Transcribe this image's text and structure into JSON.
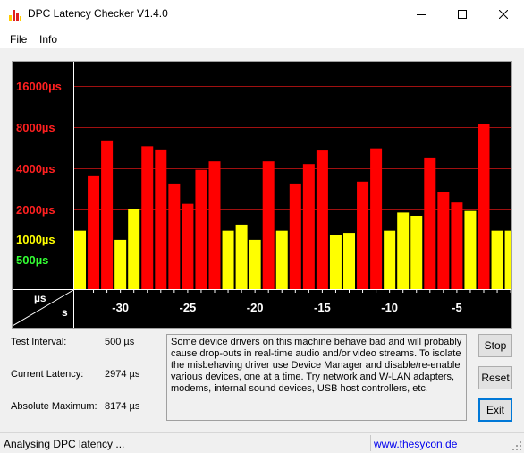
{
  "window": {
    "title": "DPC Latency Checker V1.4.0",
    "controls": [
      "minimize-icon",
      "maximize-icon",
      "close-icon"
    ]
  },
  "menu": {
    "file": "File",
    "info": "Info"
  },
  "chart_data": {
    "type": "bar",
    "yscale": "log",
    "ytick_labels": [
      {
        "text": "16000µs",
        "value": 16000,
        "color": "#ff2020"
      },
      {
        "text": "8000µs",
        "value": 8000,
        "color": "#ff2020"
      },
      {
        "text": "4000µs",
        "value": 4000,
        "color": "#ff2020"
      },
      {
        "text": "2000µs",
        "value": 2000,
        "color": "#ff2020"
      },
      {
        "text": "1000µs",
        "value": 1000,
        "color": "#ffff00"
      },
      {
        "text": "500µs",
        "value": 500,
        "color": "#33ff33"
      }
    ],
    "gridlines": [
      16000,
      8000,
      4000,
      2000
    ],
    "axis_corner": {
      "y_unit": "µs",
      "x_unit": "s"
    },
    "x": [
      -33,
      -32,
      -31,
      -30,
      -29,
      -28,
      -27,
      -26,
      -25,
      -24,
      -23,
      -22,
      -21,
      -20,
      -19,
      -18,
      -17,
      -16,
      -15,
      -14,
      -13,
      -12,
      -11,
      -10,
      -9,
      -8,
      -7,
      -6,
      -5,
      -4,
      -3,
      -2,
      -1
    ],
    "xtick_labels": [
      "-30",
      "-25",
      "-20",
      "-15",
      "-10",
      "-5"
    ],
    "xticks": [
      -30,
      -25,
      -20,
      -15,
      -10,
      -5
    ],
    "values": [
      1400,
      3500,
      6400,
      1200,
      2000,
      5800,
      5500,
      3100,
      2200,
      3900,
      4500,
      1400,
      1550,
      1200,
      4500,
      1400,
      3100,
      4300,
      5400,
      1300,
      1350,
      3200,
      5600,
      1400,
      1900,
      1800,
      4800,
      2700,
      2250,
      1950,
      8400,
      1400,
      1400
    ],
    "colors": {
      "yellow": "#ffff00",
      "red": "#ff0000"
    },
    "threshold_us": 2000
  },
  "stats": {
    "test_interval_label": "Test Interval:",
    "test_interval_value": "500 µs",
    "current_latency_label": "Current Latency:",
    "current_latency_value": "2974 µs",
    "absolute_max_label": "Absolute Maximum:",
    "absolute_max_value": "8174 µs"
  },
  "info_text": "Some device drivers on this machine behave bad and will probably cause drop-outs in real-time audio and/or video streams. To isolate the misbehaving driver use Device Manager and disable/re-enable various devices, one at a time. Try network and W-LAN adapters, modems, internal sound devices, USB host controllers, etc.",
  "buttons": {
    "stop": "Stop",
    "reset": "Reset",
    "exit": "Exit"
  },
  "status": {
    "text": "Analysing DPC latency ...",
    "link": "www.thesycon.de"
  }
}
